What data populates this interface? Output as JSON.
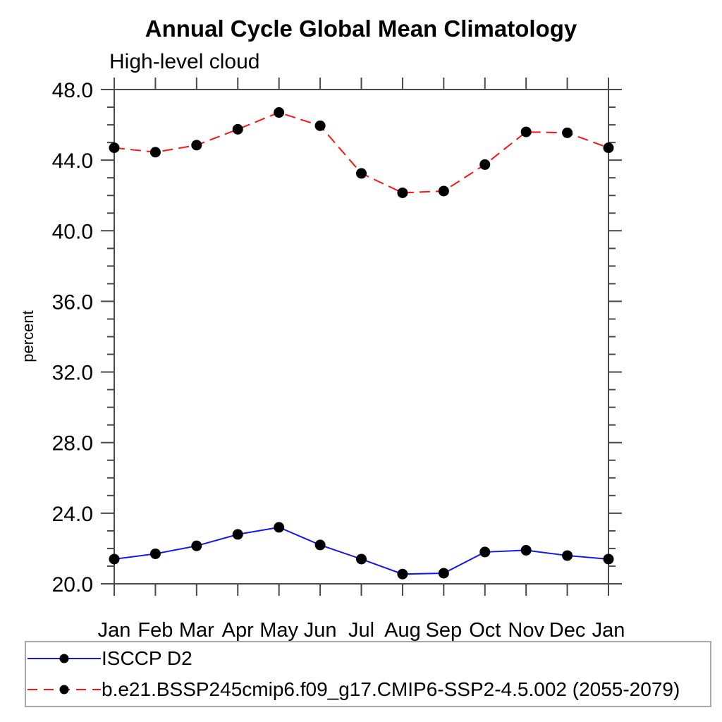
{
  "chart_data": {
    "type": "line",
    "title": "Annual Cycle Global Mean Climatology",
    "subtitle": "High-level cloud",
    "ylabel": "percent",
    "xlabel": "",
    "categories": [
      "Jan",
      "Feb",
      "Mar",
      "Apr",
      "May",
      "Jun",
      "Jul",
      "Aug",
      "Sep",
      "Oct",
      "Nov",
      "Dec",
      "Jan"
    ],
    "ylim": [
      20.0,
      48.0
    ],
    "ytick_major_interval": 4.0,
    "ytick_minor_interval": 1.0,
    "ytick_labels": [
      "48.0",
      "44.0",
      "40.0",
      "36.0",
      "32.0",
      "28.0",
      "24.0",
      "20.0"
    ],
    "grid": false,
    "frame": "box-with-outward-ticks",
    "legend_position": "bottom-left-box",
    "series": [
      {
        "name": "ISCCP D2",
        "color": "#1414f0",
        "line_style": "solid",
        "marker": "circle",
        "marker_color": "#000000",
        "values": [
          21.4,
          21.7,
          22.15,
          22.8,
          23.2,
          22.2,
          21.4,
          20.55,
          20.6,
          21.8,
          21.9,
          21.6,
          21.4
        ]
      },
      {
        "name": "b.e21.BSSP245cmip6.f09_g17.CMIP6-SSP2-4.5.002 (2055-2079)",
        "color": "#ff1212",
        "line_style": "dashed",
        "marker": "circle",
        "marker_color": "#000000",
        "values": [
          44.7,
          44.45,
          44.85,
          45.75,
          46.7,
          45.95,
          43.25,
          42.15,
          42.25,
          43.75,
          45.6,
          45.55,
          44.7
        ]
      }
    ],
    "colors": {
      "axis": "#4a4a4a",
      "text": "#000000",
      "legend_border": "#a8a8a8",
      "background": "#ffffff"
    }
  }
}
